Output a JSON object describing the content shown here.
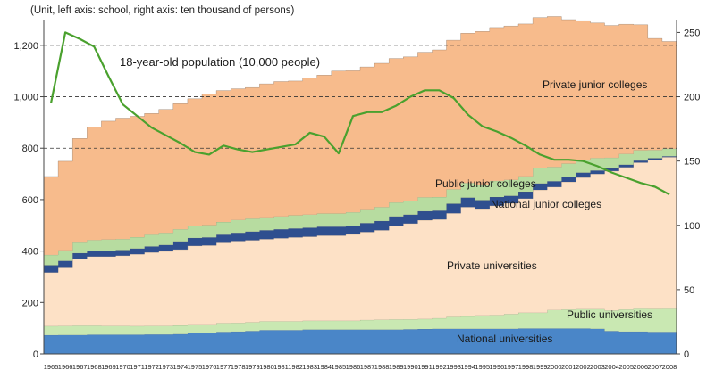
{
  "chart_data": {
    "type": "area",
    "unit_note": "(Unit, left axis: school, right axis: ten thousand of persons)",
    "x": [
      "1965",
      "1966",
      "1967",
      "1968",
      "1969",
      "1970",
      "1971",
      "1972",
      "1973",
      "1974",
      "1975",
      "1976",
      "1977",
      "1978",
      "1979",
      "1980",
      "1981",
      "1982",
      "1983",
      "1984",
      "1985",
      "1986",
      "1987",
      "1988",
      "1989",
      "1990",
      "1991",
      "1992",
      "1993",
      "1994",
      "1995",
      "1996",
      "1997",
      "1998",
      "1999",
      "2000",
      "2001",
      "2002",
      "2003",
      "2004",
      "2005",
      "2006",
      "2007",
      "2008"
    ],
    "left_axis": {
      "range": [
        0,
        1300
      ],
      "ticks": [
        "0",
        "200",
        "400",
        "600",
        "800",
        "1,000",
        "1,200"
      ],
      "tick_values": [
        0,
        200,
        400,
        600,
        800,
        1000,
        1200
      ]
    },
    "right_axis": {
      "range": [
        0,
        260
      ],
      "ticks": [
        "0",
        "50",
        "100",
        "150",
        "200",
        "250"
      ],
      "tick_values": [
        0,
        50,
        100,
        150,
        200,
        250
      ]
    },
    "reference_lines_left": [
      800,
      1000,
      1200
    ],
    "series": [
      {
        "name": "National universities",
        "color": "#4a86c8",
        "values": [
          73,
          74,
          74,
          75,
          75,
          75,
          75,
          76,
          76,
          77,
          81,
          81,
          86,
          87,
          89,
          93,
          93,
          93,
          95,
          95,
          95,
          95,
          95,
          95,
          95,
          96,
          97,
          98,
          98,
          98,
          98,
          98,
          98,
          99,
          99,
          99,
          99,
          99,
          98,
          89,
          87,
          87,
          86,
          86
        ]
      },
      {
        "name": "Public universities",
        "color": "#c9e8b2",
        "values": [
          35,
          35,
          36,
          35,
          34,
          34,
          33,
          33,
          33,
          34,
          34,
          34,
          34,
          34,
          34,
          34,
          34,
          34,
          34,
          34,
          34,
          34,
          37,
          38,
          39,
          39,
          39,
          41,
          46,
          48,
          52,
          53,
          57,
          61,
          61,
          72,
          74,
          75,
          76,
          80,
          86,
          89,
          89,
          90
        ]
      },
      {
        "name": "Private universities",
        "color": "#fde1c6",
        "values": [
          209,
          226,
          259,
          269,
          270,
          273,
          280,
          286,
          290,
          295,
          305,
          307,
          312,
          318,
          319,
          319,
          323,
          326,
          327,
          331,
          331,
          336,
          342,
          348,
          365,
          372,
          384,
          384,
          403,
          425,
          415,
          425,
          431,
          444,
          478,
          478,
          496,
          512,
          526,
          542,
          553,
          568,
          580,
          589
        ]
      },
      {
        "name": "National junior colleges",
        "color": "#2f4f8f",
        "values": [
          28,
          27,
          23,
          22,
          23,
          22,
          22,
          23,
          25,
          32,
          31,
          31,
          32,
          32,
          34,
          35,
          35,
          35,
          35,
          35,
          35,
          34,
          35,
          36,
          36,
          35,
          35,
          34,
          37,
          37,
          33,
          34,
          29,
          27,
          25,
          23,
          20,
          19,
          13,
          10,
          10,
          8,
          6,
          4
        ]
      },
      {
        "name": "Public junior colleges",
        "color": "#b7dca0",
        "values": [
          40,
          41,
          41,
          42,
          43,
          43,
          44,
          46,
          47,
          47,
          48,
          48,
          49,
          50,
          50,
          50,
          50,
          51,
          51,
          51,
          51,
          52,
          54,
          54,
          54,
          54,
          54,
          53,
          56,
          57,
          60,
          63,
          62,
          60,
          59,
          55,
          51,
          50,
          49,
          42,
          42,
          40,
          32,
          29
        ]
      },
      {
        "name": "Private junior colleges",
        "color": "#f7bb8c",
        "values": [
          305,
          346,
          405,
          440,
          460,
          470,
          470,
          471,
          480,
          488,
          493,
          510,
          511,
          510,
          510,
          519,
          524,
          522,
          531,
          538,
          554,
          550,
          553,
          559,
          560,
          559,
          564,
          572,
          580,
          582,
          596,
          596,
          598,
          592,
          586,
          585,
          560,
          541,
          525,
          514,
          504,
          488,
          434,
          417
        ]
      },
      {
        "name": "18-year-old population (10,000 people)",
        "color": "#4aa12e",
        "axis": "right",
        "values": [
          195,
          250,
          245,
          239,
          216,
          194,
          185,
          176,
          170,
          164,
          157,
          155,
          162,
          159,
          157,
          159,
          161,
          163,
          172,
          169,
          156,
          185,
          188,
          188,
          193,
          200,
          205,
          205,
          199,
          186,
          177,
          173,
          168,
          162,
          155,
          151,
          151,
          150,
          146,
          141,
          137,
          133,
          130,
          124
        ]
      }
    ],
    "labels": {
      "population": "18-year-old population (10,000 people)",
      "private_jc": "Private junior colleges",
      "public_jc": "Public junior colleges",
      "national_jc": "National junior colleges",
      "private_univ": "Private universities",
      "public_univ": "Public universities",
      "national_univ": "National universities"
    }
  }
}
